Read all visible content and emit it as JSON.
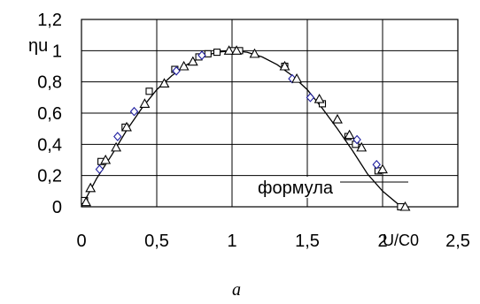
{
  "chart_data": {
    "type": "scatter",
    "ylabel": "ηu",
    "xlabel": "U/C0",
    "caption": "а",
    "annotation": "формула",
    "xlim": [
      0,
      2.5
    ],
    "ylim": [
      0,
      1.2
    ],
    "x_ticks": [
      "0",
      "0,5",
      "1",
      "1,5",
      "2",
      "2,5"
    ],
    "y_ticks": [
      "0",
      "0,2",
      "0,4",
      "0,6",
      "0,8",
      "1",
      "1,2"
    ],
    "grid": true,
    "colors": {
      "squares": "#000000",
      "diamonds": "#1f1fa0",
      "triangles": "#000000",
      "curve": "#000000"
    },
    "series": [
      {
        "marker": "square",
        "x": [
          0.02,
          0.13,
          0.29,
          0.45,
          0.62,
          0.78,
          0.84,
          0.9,
          1.0,
          1.05,
          1.35,
          1.6,
          1.77,
          1.82,
          1.97,
          2.12
        ],
        "y": [
          0.04,
          0.29,
          0.51,
          0.74,
          0.88,
          0.96,
          0.98,
          0.99,
          1.0,
          1.0,
          0.9,
          0.66,
          0.45,
          0.4,
          0.23,
          0.0
        ]
      },
      {
        "marker": "diamond",
        "x": [
          0.12,
          0.24,
          0.35,
          0.63,
          0.8,
          1.4,
          1.52,
          1.83,
          1.96
        ],
        "y": [
          0.24,
          0.45,
          0.61,
          0.87,
          0.97,
          0.82,
          0.7,
          0.43,
          0.27
        ]
      },
      {
        "marker": "triangle",
        "x": [
          0.03,
          0.06,
          0.16,
          0.23,
          0.3,
          0.42,
          0.55,
          0.68,
          0.74,
          0.98,
          1.03,
          1.15,
          1.35,
          1.43,
          1.58,
          1.7,
          1.78,
          1.86,
          2.0,
          2.15
        ],
        "y": [
          0.03,
          0.12,
          0.3,
          0.38,
          0.51,
          0.66,
          0.79,
          0.9,
          0.93,
          1.0,
          1.0,
          0.98,
          0.9,
          0.82,
          0.69,
          0.56,
          0.46,
          0.38,
          0.24,
          0.0
        ]
      }
    ],
    "curve_x": [
      0,
      0.1,
      0.2,
      0.3,
      0.4,
      0.5,
      0.6,
      0.7,
      0.8,
      0.9,
      1.0,
      1.1,
      1.2,
      1.3,
      1.4,
      1.5,
      1.6,
      1.7,
      1.8,
      1.9,
      2.0,
      2.1,
      2.15
    ],
    "curve_y": [
      0.0,
      0.18,
      0.33,
      0.49,
      0.63,
      0.75,
      0.84,
      0.91,
      0.96,
      0.99,
      1.0,
      0.99,
      0.96,
      0.91,
      0.84,
      0.75,
      0.63,
      0.5,
      0.36,
      0.21,
      0.1,
      0.02,
      0.0
    ]
  }
}
